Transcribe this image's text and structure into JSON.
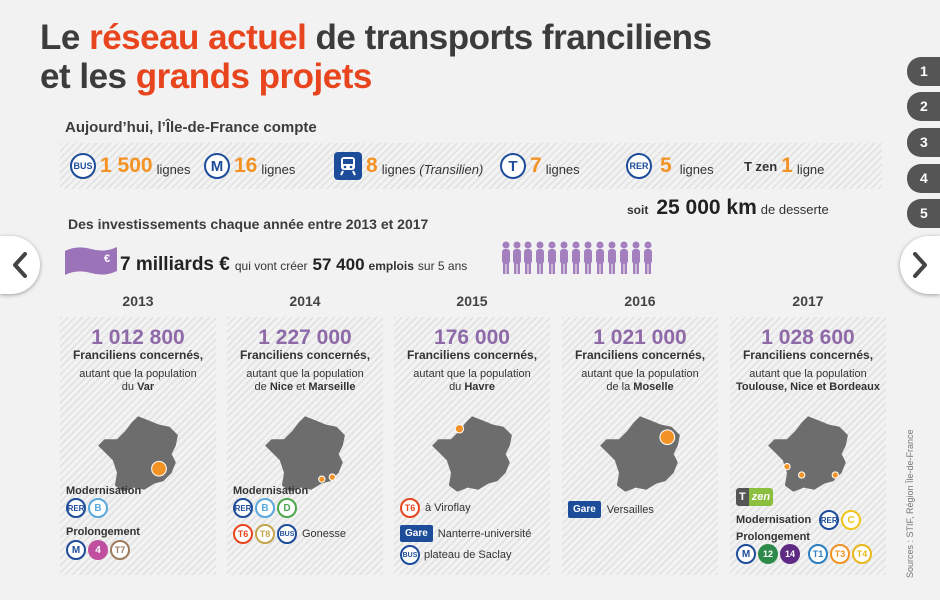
{
  "title": {
    "p1": "Le ",
    "h1": "réseau actuel",
    "p2": " de transports franciliens",
    "p3": "et les ",
    "h2": "grands projets"
  },
  "tabs": [
    "1",
    "2",
    "3",
    "4",
    "5"
  ],
  "subhead_today": "Aujourd’hui, l’Île-de-France compte",
  "stats": [
    {
      "icon": "bus-icon",
      "badge": "BUS",
      "value": "1 500",
      "unit": "lignes",
      "extra": ""
    },
    {
      "icon": "metro-icon",
      "badge": "M",
      "value": "16",
      "unit": "lignes",
      "extra": ""
    },
    {
      "icon": "train-icon",
      "badge": "",
      "value": "8",
      "unit": "lignes ",
      "extra": "(Transilien)"
    },
    {
      "icon": "tram-icon",
      "badge": "T",
      "value": "7",
      "unit": "lignes",
      "extra": ""
    },
    {
      "icon": "rer-icon",
      "badge": "RER",
      "value": "5",
      "unit": "lignes",
      "extra": ""
    },
    {
      "icon": "tzen-icon",
      "badge": "T zen",
      "value": "1",
      "unit": "ligne",
      "extra": ""
    }
  ],
  "desserte": {
    "soit": "soit",
    "km": "25 000 km",
    "label": "de desserte"
  },
  "subhead_invest": "Des investissements chaque année entre 2013 et 2017",
  "invest": {
    "amount": "7 milliards €",
    "text1": "qui vont créer",
    "jobs": "57 400",
    "jobs_label": "emplois",
    "text2": "sur 5 ans"
  },
  "colors": {
    "accent": "#e8451f",
    "orange": "#f39325",
    "purple": "#8e6aa8",
    "navy": "#1d4c9b"
  },
  "years": [
    {
      "year": "2013",
      "count": "1 012 800",
      "concerned": "Franciliens concernés,",
      "pop_line1": "autant que la population",
      "pop_pre": "du ",
      "pop_place": "Var",
      "modern_label": "Modernisation",
      "modern": [
        "RER",
        "B"
      ],
      "prolong_label": "Prolongement",
      "prolong": [
        "M",
        "4",
        "T7"
      ],
      "extras": []
    },
    {
      "year": "2014",
      "count": "1 227 000",
      "concerned": "Franciliens concernés,",
      "pop_line1": "autant que la population",
      "pop_pre": "de ",
      "pop_place": "Nice",
      "pop_mid": " et ",
      "pop_place2": "Marseille",
      "modern_label": "Modernisation",
      "modern": [
        "RER",
        "B",
        "D"
      ],
      "prolong_label": "",
      "prolong": [
        "T6",
        "T8",
        "BUS"
      ],
      "prolong_text": "Gonesse",
      "extras": []
    },
    {
      "year": "2015",
      "count": "176 000",
      "concerned": "Franciliens concernés,",
      "pop_line1": "autant que la population",
      "pop_pre": "du ",
      "pop_place": "Havre",
      "items": [
        {
          "badge": "T6",
          "text": "à Viroflay"
        },
        {
          "badge": "Gare",
          "text": "Nanterre-université"
        },
        {
          "badge": "BUS",
          "text": "plateau de Saclay"
        }
      ]
    },
    {
      "year": "2016",
      "count": "1 021 000",
      "concerned": "Franciliens concernés,",
      "pop_line1": "autant que la population",
      "pop_pre": "de la ",
      "pop_place": "Moselle",
      "items": [
        {
          "badge": "Gare",
          "text": "Versailles"
        }
      ]
    },
    {
      "year": "2017",
      "count": "1 028 600",
      "concerned": "Franciliens concernés,",
      "pop_line1": "autant que la population",
      "pop_pre": "",
      "pop_place": "Toulouse, Nice et Bordeaux",
      "tzen_t": "T",
      "tzen_z": "zen",
      "modern_label": "Modernisation",
      "modern": [
        "RER",
        "C"
      ],
      "prolong_label": "Prolongement",
      "prolong": [
        "M",
        "12",
        "14",
        "T1",
        "T3",
        "T4"
      ]
    }
  ],
  "sources": "Sources : STIF, Région Île-de-France"
}
